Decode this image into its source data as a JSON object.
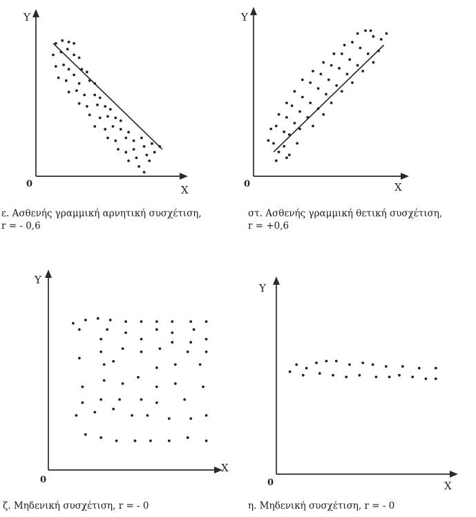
{
  "chart_data": [
    {
      "type": "scatter",
      "axis_x_label": "X",
      "axis_y_label": "Y",
      "origin_label": "0",
      "caption_line1": "ε. Ασθενής γραμμική αρνητική συσχέτιση,",
      "caption_line2": "r = - 0,6",
      "trend_line": {
        "x1": 0.08,
        "y1": 0.88,
        "x2": 0.92,
        "y2": 0.14
      },
      "points": [
        [
          0.1,
          0.88
        ],
        [
          0.15,
          0.9
        ],
        [
          0.2,
          0.89
        ],
        [
          0.24,
          0.88
        ],
        [
          0.08,
          0.8
        ],
        [
          0.14,
          0.82
        ],
        [
          0.19,
          0.84
        ],
        [
          0.24,
          0.8
        ],
        [
          0.28,
          0.78
        ],
        [
          0.1,
          0.72
        ],
        [
          0.16,
          0.73
        ],
        [
          0.2,
          0.7
        ],
        [
          0.3,
          0.7
        ],
        [
          0.34,
          0.68
        ],
        [
          0.12,
          0.64
        ],
        [
          0.18,
          0.62
        ],
        [
          0.24,
          0.66
        ],
        [
          0.28,
          0.6
        ],
        [
          0.36,
          0.62
        ],
        [
          0.4,
          0.6
        ],
        [
          0.2,
          0.54
        ],
        [
          0.26,
          0.55
        ],
        [
          0.32,
          0.52
        ],
        [
          0.4,
          0.52
        ],
        [
          0.44,
          0.5
        ],
        [
          0.28,
          0.46
        ],
        [
          0.34,
          0.44
        ],
        [
          0.42,
          0.45
        ],
        [
          0.48,
          0.44
        ],
        [
          0.52,
          0.42
        ],
        [
          0.36,
          0.38
        ],
        [
          0.44,
          0.36
        ],
        [
          0.5,
          0.37
        ],
        [
          0.56,
          0.36
        ],
        [
          0.6,
          0.34
        ],
        [
          0.4,
          0.3
        ],
        [
          0.48,
          0.28
        ],
        [
          0.54,
          0.3
        ],
        [
          0.6,
          0.28
        ],
        [
          0.66,
          0.26
        ],
        [
          0.5,
          0.22
        ],
        [
          0.56,
          0.2
        ],
        [
          0.64,
          0.22
        ],
        [
          0.7,
          0.2
        ],
        [
          0.76,
          0.22
        ],
        [
          0.58,
          0.14
        ],
        [
          0.64,
          0.12
        ],
        [
          0.7,
          0.14
        ],
        [
          0.78,
          0.16
        ],
        [
          0.84,
          0.18
        ],
        [
          0.66,
          0.06
        ],
        [
          0.72,
          0.08
        ],
        [
          0.8,
          0.1
        ],
        [
          0.86,
          0.12
        ],
        [
          0.9,
          0.16
        ],
        [
          0.74,
          0.02
        ],
        [
          0.82,
          0.06
        ],
        [
          0.78,
          -0.02
        ]
      ]
    },
    {
      "type": "scatter",
      "axis_x_label": "X",
      "axis_y_label": "Y",
      "origin_label": "0",
      "caption_line1": "στ. Ασθενής γραμμική θετική συσχέτιση,",
      "caption_line2": "r = +0,6",
      "trend_line": {
        "x1": 0.1,
        "y1": 0.12,
        "x2": 0.94,
        "y2": 0.86
      },
      "points": [
        [
          0.06,
          0.2
        ],
        [
          0.1,
          0.18
        ],
        [
          0.14,
          0.12
        ],
        [
          0.18,
          0.16
        ],
        [
          0.22,
          0.1
        ],
        [
          0.08,
          0.28
        ],
        [
          0.12,
          0.3
        ],
        [
          0.18,
          0.26
        ],
        [
          0.22,
          0.24
        ],
        [
          0.28,
          0.18
        ],
        [
          0.14,
          0.38
        ],
        [
          0.2,
          0.36
        ],
        [
          0.26,
          0.32
        ],
        [
          0.3,
          0.28
        ],
        [
          0.12,
          0.06
        ],
        [
          0.2,
          0.08
        ],
        [
          0.2,
          0.46
        ],
        [
          0.24,
          0.44
        ],
        [
          0.3,
          0.4
        ],
        [
          0.36,
          0.36
        ],
        [
          0.4,
          0.3
        ],
        [
          0.26,
          0.54
        ],
        [
          0.32,
          0.5
        ],
        [
          0.38,
          0.46
        ],
        [
          0.44,
          0.42
        ],
        [
          0.48,
          0.38
        ],
        [
          0.32,
          0.62
        ],
        [
          0.38,
          0.6
        ],
        [
          0.44,
          0.56
        ],
        [
          0.5,
          0.52
        ],
        [
          0.54,
          0.46
        ],
        [
          0.4,
          0.68
        ],
        [
          0.46,
          0.66
        ],
        [
          0.52,
          0.62
        ],
        [
          0.58,
          0.58
        ],
        [
          0.62,
          0.54
        ],
        [
          0.48,
          0.74
        ],
        [
          0.54,
          0.72
        ],
        [
          0.6,
          0.7
        ],
        [
          0.66,
          0.66
        ],
        [
          0.7,
          0.6
        ],
        [
          0.56,
          0.8
        ],
        [
          0.62,
          0.8
        ],
        [
          0.68,
          0.76
        ],
        [
          0.74,
          0.72
        ],
        [
          0.78,
          0.68
        ],
        [
          0.64,
          0.86
        ],
        [
          0.7,
          0.88
        ],
        [
          0.76,
          0.84
        ],
        [
          0.82,
          0.8
        ],
        [
          0.86,
          0.74
        ],
        [
          0.74,
          0.94
        ],
        [
          0.8,
          0.96
        ],
        [
          0.86,
          0.92
        ],
        [
          0.92,
          0.9
        ],
        [
          0.9,
          0.82
        ],
        [
          0.84,
          0.96
        ],
        [
          0.96,
          0.94
        ]
      ]
    },
    {
      "type": "scatter",
      "axis_x_label": "X",
      "axis_y_label": "Y",
      "origin_label": "0",
      "caption_line1": "ζ. Μηδενική συσχέτιση, r = - 0",
      "caption_line2": "",
      "trend_line": null,
      "points": [
        [
          0.08,
          0.88
        ],
        [
          0.16,
          0.9
        ],
        [
          0.24,
          0.91
        ],
        [
          0.32,
          0.9
        ],
        [
          0.42,
          0.89
        ],
        [
          0.52,
          0.89
        ],
        [
          0.62,
          0.89
        ],
        [
          0.72,
          0.89
        ],
        [
          0.84,
          0.89
        ],
        [
          0.94,
          0.89
        ],
        [
          0.12,
          0.84
        ],
        [
          0.3,
          0.84
        ],
        [
          0.42,
          0.82
        ],
        [
          0.62,
          0.84
        ],
        [
          0.72,
          0.82
        ],
        [
          0.86,
          0.84
        ],
        [
          0.26,
          0.78
        ],
        [
          0.52,
          0.78
        ],
        [
          0.72,
          0.76
        ],
        [
          0.84,
          0.76
        ],
        [
          0.94,
          0.78
        ],
        [
          0.12,
          0.66
        ],
        [
          0.26,
          0.7
        ],
        [
          0.4,
          0.72
        ],
        [
          0.52,
          0.7
        ],
        [
          0.64,
          0.72
        ],
        [
          0.82,
          0.7
        ],
        [
          0.94,
          0.7
        ],
        [
          0.28,
          0.62
        ],
        [
          0.34,
          0.64
        ],
        [
          0.62,
          0.6
        ],
        [
          0.74,
          0.62
        ],
        [
          0.9,
          0.62
        ],
        [
          0.14,
          0.48
        ],
        [
          0.28,
          0.52
        ],
        [
          0.4,
          0.5
        ],
        [
          0.5,
          0.54
        ],
        [
          0.62,
          0.48
        ],
        [
          0.74,
          0.5
        ],
        [
          0.92,
          0.48
        ],
        [
          0.14,
          0.38
        ],
        [
          0.26,
          0.4
        ],
        [
          0.38,
          0.4
        ],
        [
          0.52,
          0.4
        ],
        [
          0.62,
          0.38
        ],
        [
          0.8,
          0.4
        ],
        [
          0.1,
          0.3
        ],
        [
          0.22,
          0.32
        ],
        [
          0.34,
          0.34
        ],
        [
          0.46,
          0.3
        ],
        [
          0.56,
          0.3
        ],
        [
          0.7,
          0.28
        ],
        [
          0.84,
          0.28
        ],
        [
          0.94,
          0.3
        ],
        [
          0.16,
          0.18
        ],
        [
          0.26,
          0.16
        ],
        [
          0.36,
          0.14
        ],
        [
          0.48,
          0.14
        ],
        [
          0.58,
          0.14
        ],
        [
          0.7,
          0.14
        ],
        [
          0.82,
          0.16
        ],
        [
          0.94,
          0.14
        ]
      ]
    },
    {
      "type": "scatter",
      "axis_x_label": "X",
      "axis_y_label": "Y",
      "origin_label": "0",
      "caption_line1": "η. Μηδενική συσχέτιση, r = - 0",
      "caption_line2": "",
      "trend_line": null,
      "points": [
        [
          0.04,
          0.54
        ],
        [
          0.08,
          0.58
        ],
        [
          0.14,
          0.56
        ],
        [
          0.2,
          0.59
        ],
        [
          0.26,
          0.6
        ],
        [
          0.32,
          0.6
        ],
        [
          0.4,
          0.58
        ],
        [
          0.48,
          0.59
        ],
        [
          0.54,
          0.58
        ],
        [
          0.62,
          0.57
        ],
        [
          0.72,
          0.57
        ],
        [
          0.82,
          0.56
        ],
        [
          0.92,
          0.56
        ],
        [
          0.12,
          0.52
        ],
        [
          0.22,
          0.53
        ],
        [
          0.3,
          0.52
        ],
        [
          0.38,
          0.51
        ],
        [
          0.46,
          0.52
        ],
        [
          0.56,
          0.51
        ],
        [
          0.64,
          0.51
        ],
        [
          0.7,
          0.52
        ],
        [
          0.78,
          0.51
        ],
        [
          0.86,
          0.5
        ],
        [
          0.92,
          0.5
        ]
      ]
    }
  ]
}
